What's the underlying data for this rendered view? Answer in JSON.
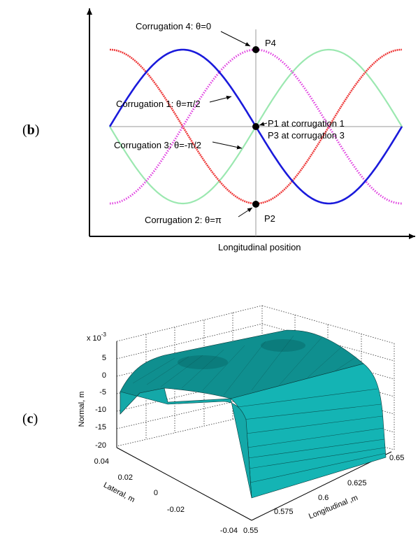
{
  "panel_b": {
    "label_open": "(",
    "label_letter": "b",
    "label_close": ")",
    "xlabel": "Longitudinal position",
    "annotations": {
      "c4": "Corrugation 4: θ=0",
      "c1": "Corrugation 1: θ=π/2",
      "c3": "Corrugation 3: θ=-π/2",
      "c2": "Corrugation 2: θ=π",
      "p4": "P4",
      "p1": "P1 at corrugation 1",
      "p3": "P3 at corrugation 3",
      "p2": "P2"
    },
    "colors": {
      "c1": "#1a1adb",
      "c2": "#ee3b3b",
      "c3": "#9be8b0",
      "c4": "#e040e0",
      "axis": "#000000",
      "ref": "#999999"
    }
  },
  "panel_c": {
    "label_open": "(",
    "label_letter": "c",
    "label_close": ")",
    "scale_base": "x 10",
    "scale_exp": "-3",
    "zlabel": "Normal, m",
    "ylabel": "Lateral, m",
    "xlabel": "Longitudinal ,m",
    "z_ticks": [
      "5",
      "0",
      "-5",
      "-10",
      "-15",
      "-20"
    ],
    "y_ticks": [
      "0.04",
      "0.02",
      "0",
      "-0.02",
      "-0.04"
    ],
    "x_ticks": [
      "0.55",
      "0.575",
      "0.6",
      "0.625",
      "0.65"
    ],
    "surface_color": "#14b4b4"
  }
}
